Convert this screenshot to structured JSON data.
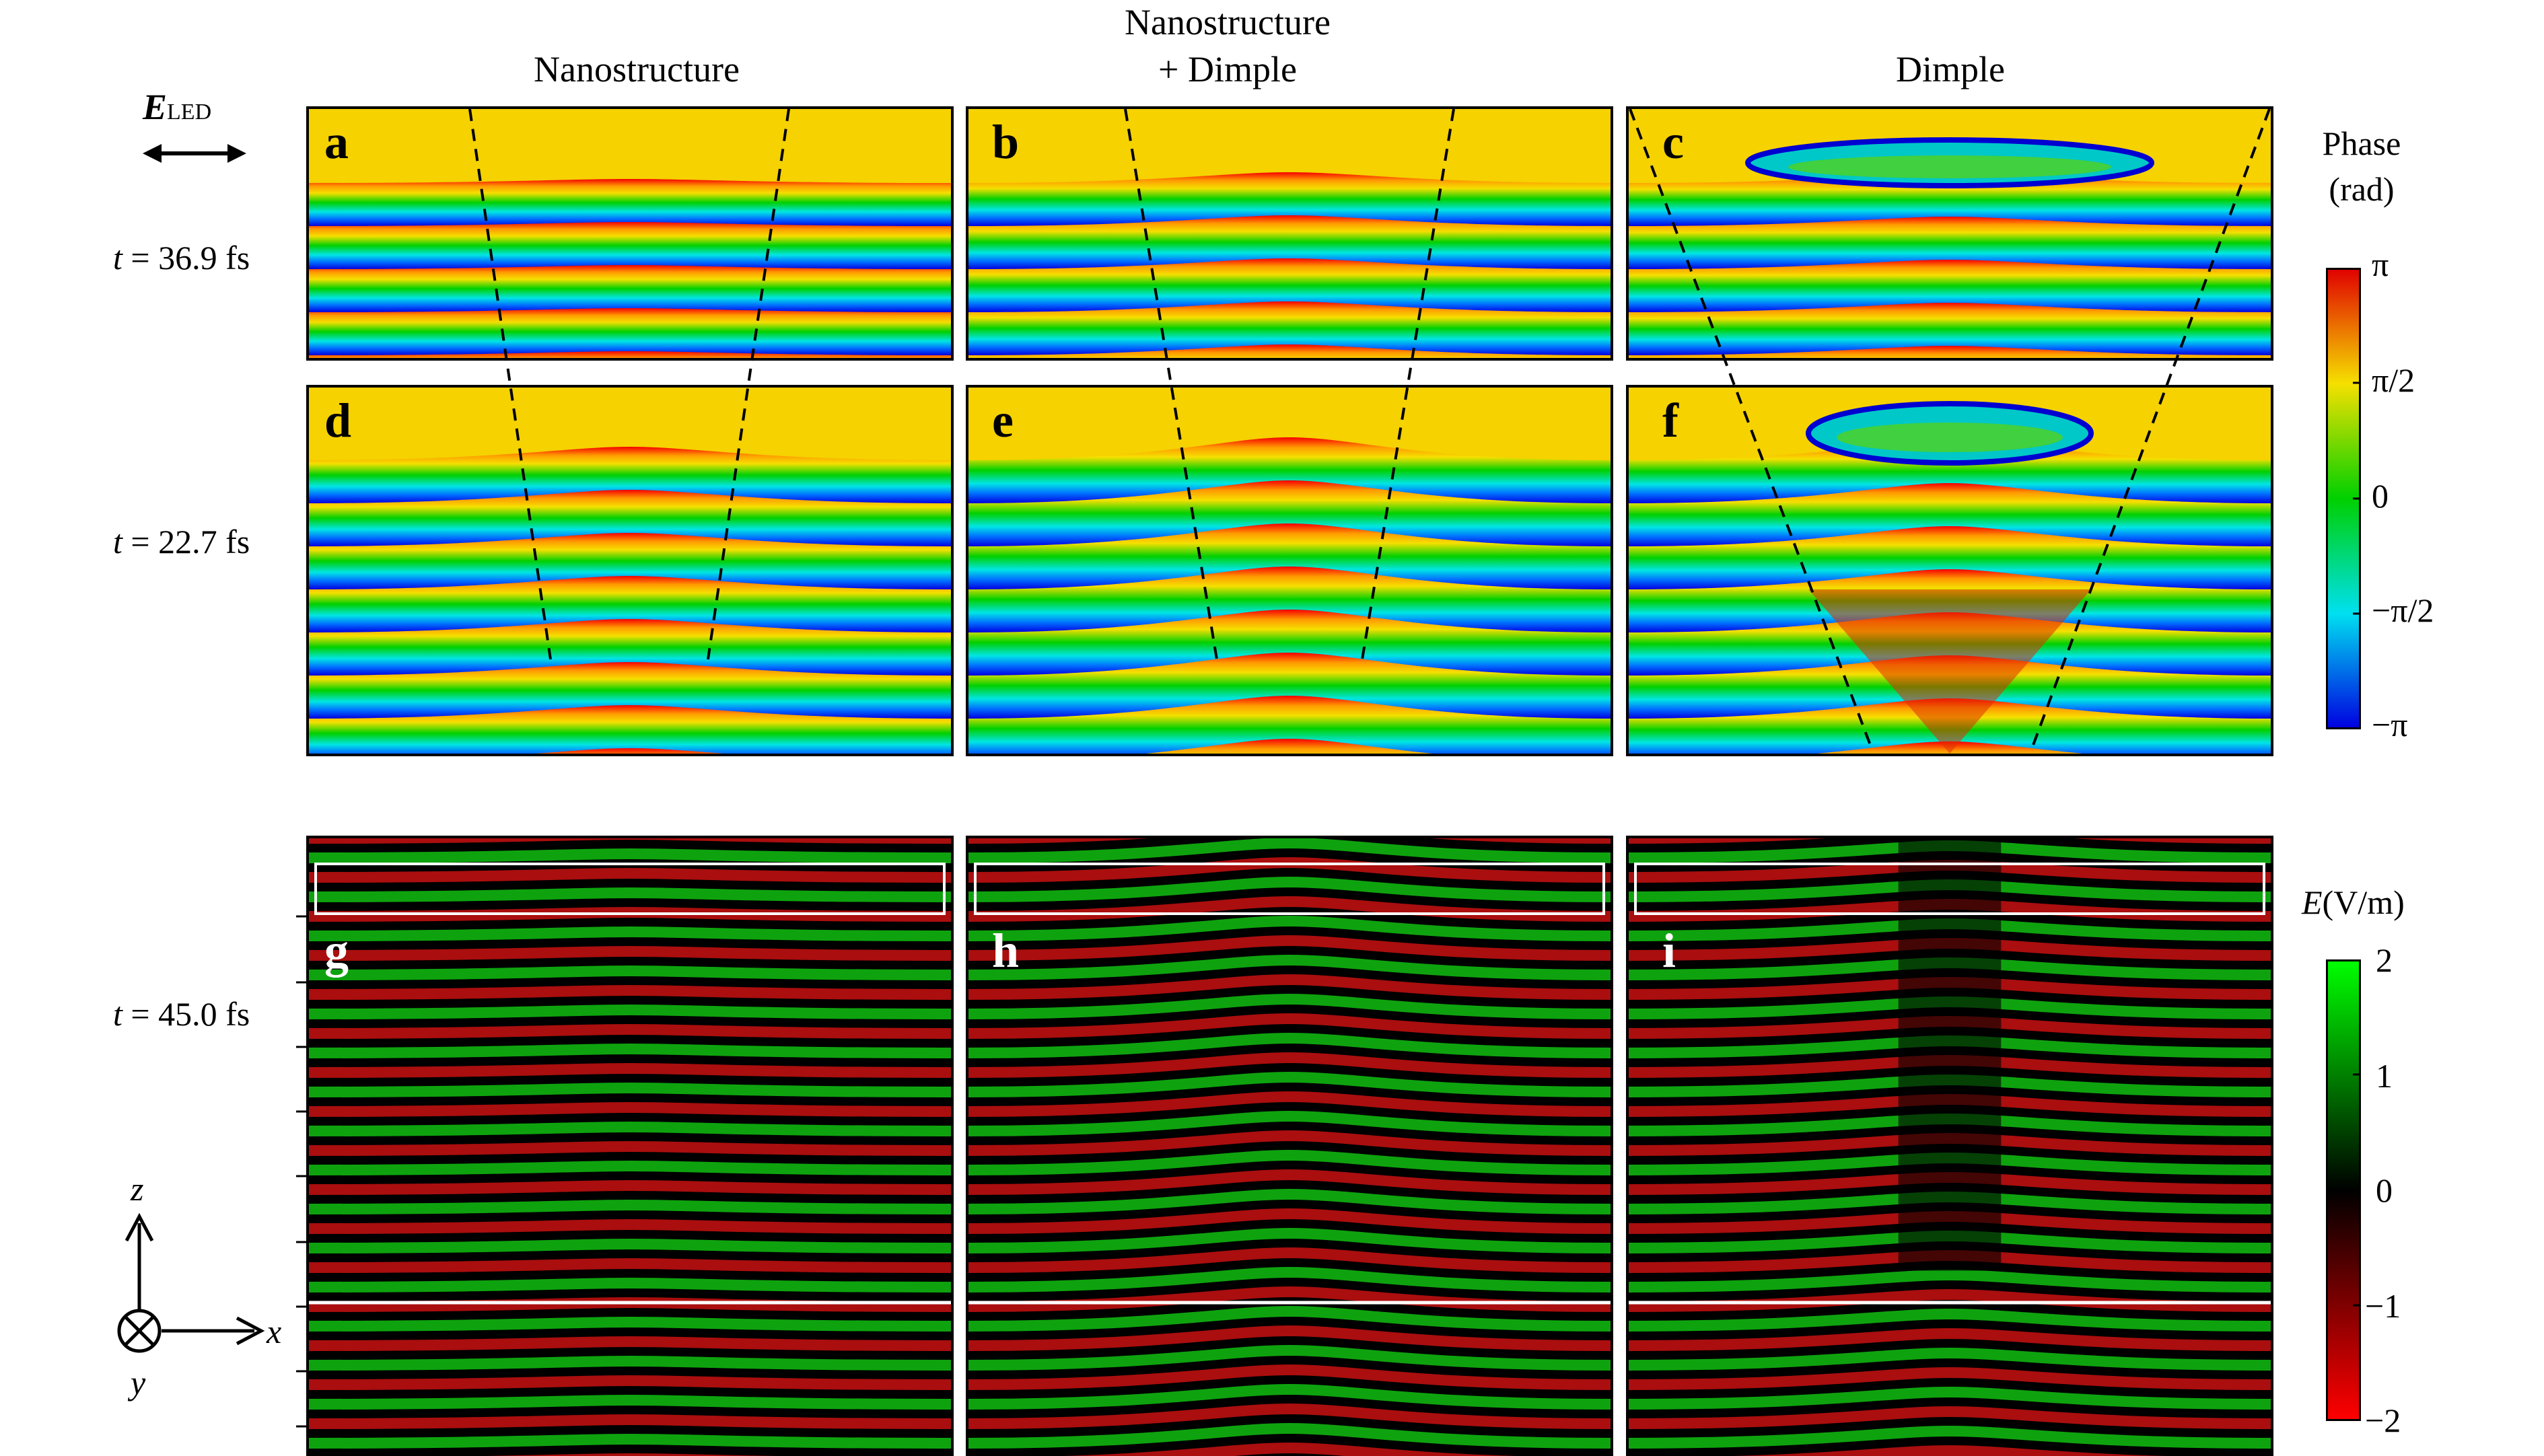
{
  "columns": {
    "col1": "Nanostructure",
    "col2_line1": "Nanostructure",
    "col2_line2": "+ Dimple",
    "col3": "Dimple"
  },
  "field_label": {
    "E": "E",
    "sub": "LED"
  },
  "times": {
    "row1": "36.9 fs",
    "row2": "22.7 fs",
    "row3": "45.0 fs"
  },
  "time_var": "t",
  "panels": [
    "a",
    "b",
    "c",
    "d",
    "e",
    "f",
    "g",
    "h",
    "i"
  ],
  "phase_colorbar": {
    "title_line1": "Phase",
    "title_line2": "(rad)",
    "ticks": [
      "π",
      "π/2",
      "0",
      "−π/2",
      "−π"
    ]
  },
  "field_colorbar": {
    "title": "E(V/m)",
    "title_var": "E",
    "title_unit": "(V/m)",
    "ticks": [
      "2",
      "1",
      "0",
      "−1",
      "−2"
    ]
  },
  "axes": {
    "z": "z",
    "x": "x",
    "y": "y"
  },
  "colors": {
    "phase_top": "#f5d800",
    "field_pos": "#00d000",
    "field_neg": "#d00000"
  }
}
